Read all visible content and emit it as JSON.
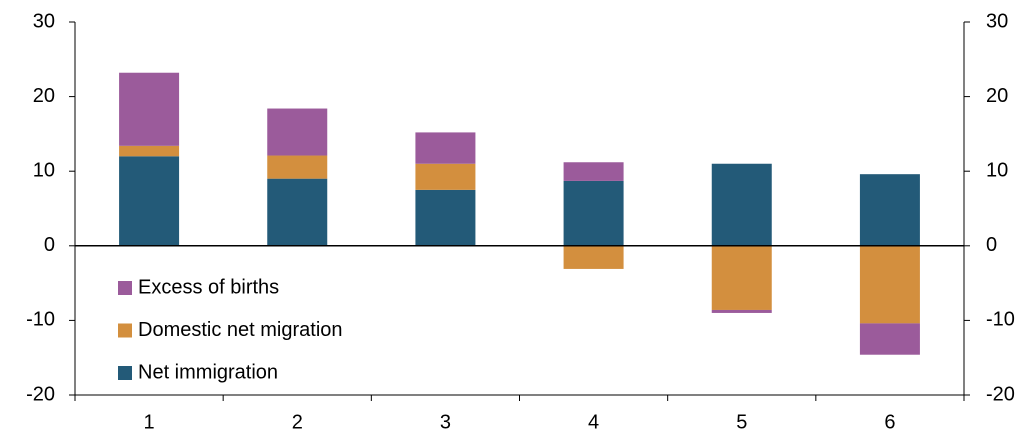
{
  "chart_data": {
    "type": "stacked_bar",
    "categories": [
      "1",
      "2",
      "3",
      "4",
      "5",
      "6"
    ],
    "series": [
      {
        "name": "Net immigration",
        "color": "#235a78",
        "values": [
          12,
          9,
          7.5,
          8.7,
          11,
          9.6
        ]
      },
      {
        "name": "Domestic net migration",
        "color": "#d38f3e",
        "values": [
          1.4,
          3.1,
          3.5,
          -3.1,
          -8.6,
          -10.4
        ]
      },
      {
        "name": "Excess of births",
        "color": "#9b5b9b",
        "values": [
          9.8,
          6.3,
          4.2,
          2.5,
          -0.4,
          -4.2
        ]
      }
    ],
    "ylim": [
      -20,
      30
    ],
    "yticks": [
      -20,
      -10,
      0,
      10,
      20,
      30
    ],
    "y2lim": [
      -20,
      30
    ],
    "y2ticks": [
      -20,
      -10,
      0,
      10,
      20,
      30
    ],
    "legend": "lower-left"
  }
}
